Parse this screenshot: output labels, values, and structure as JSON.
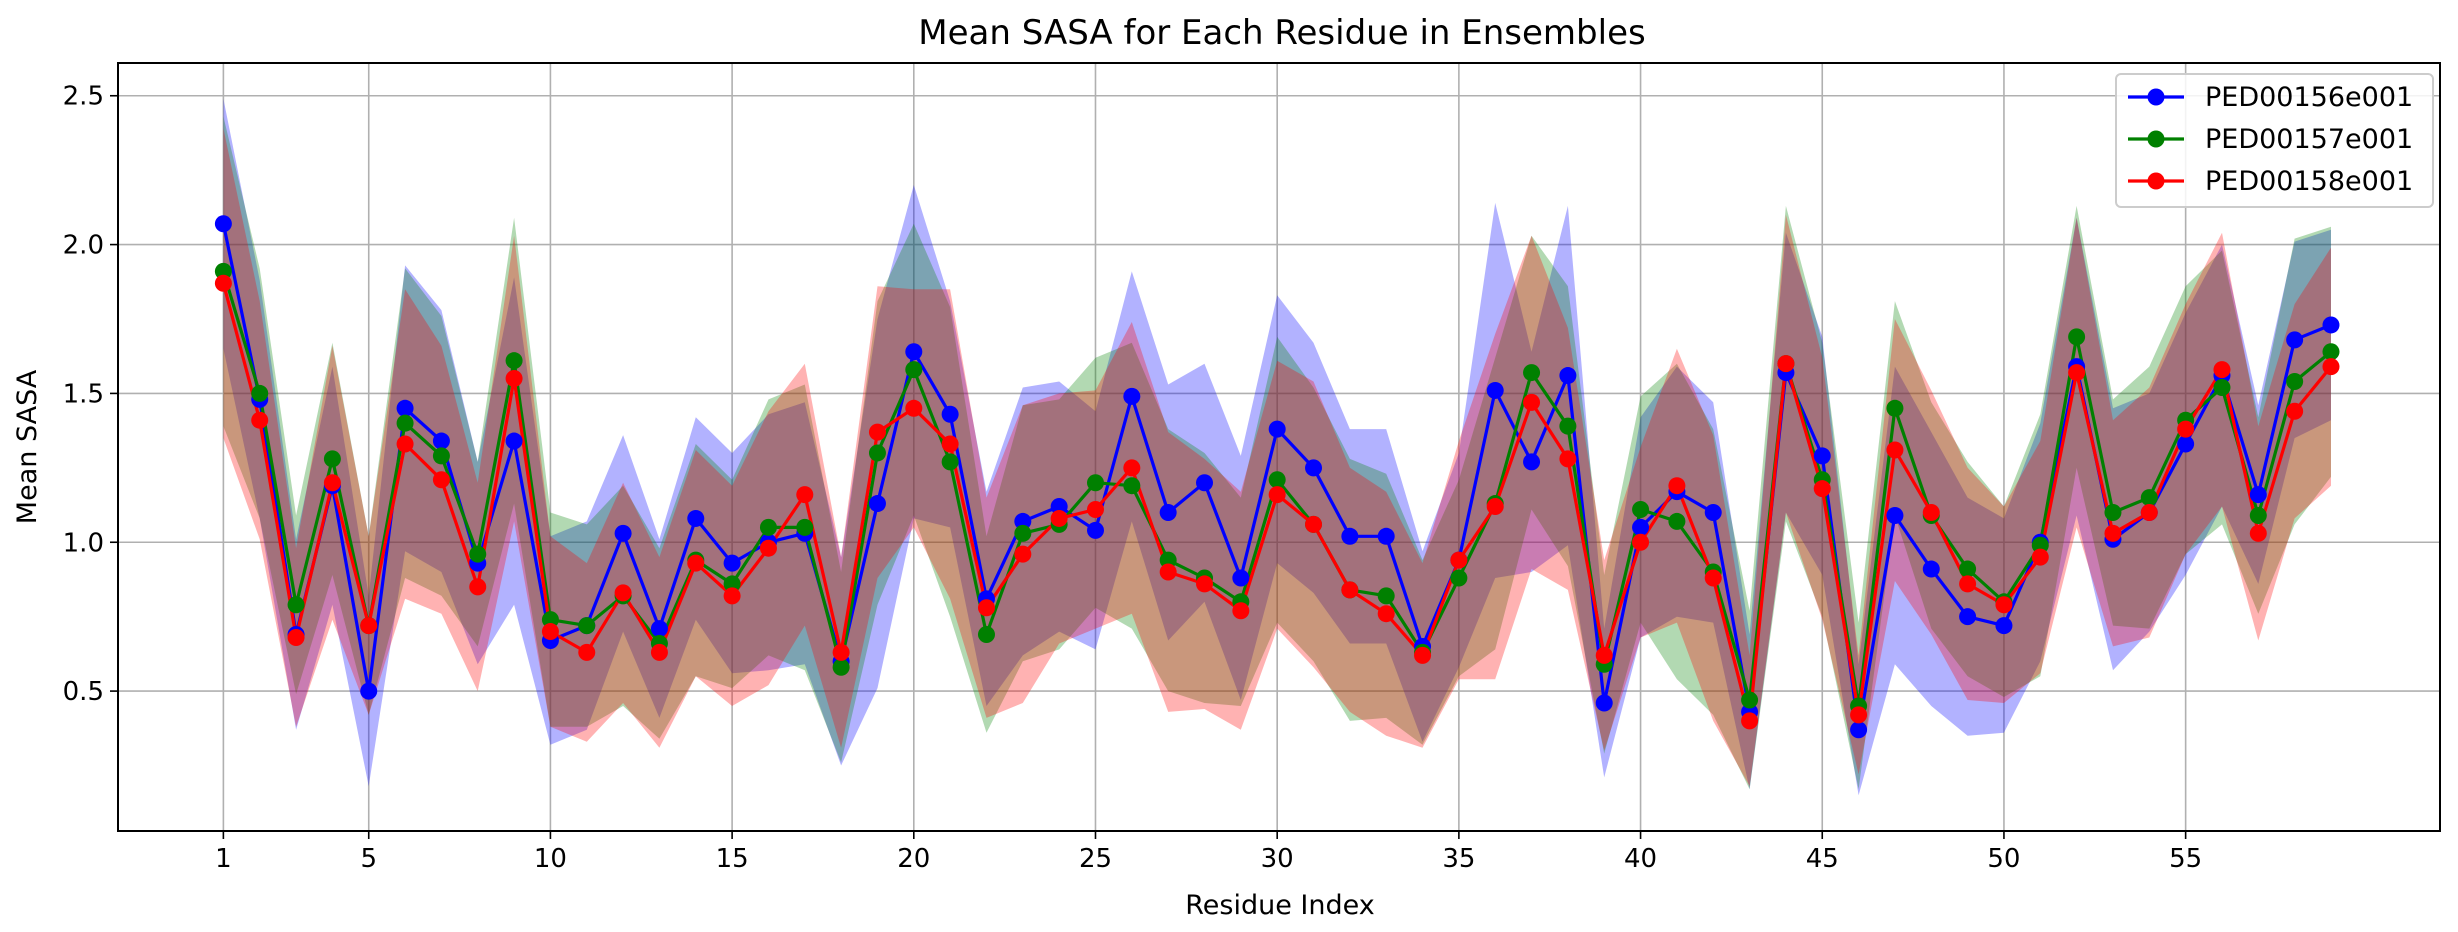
{
  "toolbar": {
    "copy_icon": "copy-icon",
    "second_icon": "toolbar-icon"
  },
  "chart_data": {
    "type": "line",
    "title": "Mean SASA for Each Residue in Ensembles",
    "xlabel": "Residue Index",
    "ylabel": "Mean SASA",
    "x": [
      1,
      2,
      3,
      4,
      5,
      6,
      7,
      8,
      9,
      10,
      11,
      12,
      13,
      14,
      15,
      16,
      17,
      18,
      19,
      20,
      21,
      22,
      23,
      24,
      25,
      26,
      27,
      28,
      29,
      30,
      31,
      32,
      33,
      34,
      35,
      36,
      37,
      38,
      39,
      40,
      41,
      42,
      43,
      44,
      45,
      46,
      47,
      48,
      49,
      50,
      51,
      52,
      53,
      54,
      55,
      56,
      57,
      58,
      59
    ],
    "xticks": [
      1,
      5,
      10,
      15,
      20,
      25,
      30,
      35,
      40,
      45,
      50,
      55
    ],
    "xtick_labels": [
      "1",
      "5",
      "10",
      "15",
      "20",
      "25",
      "30",
      "35",
      "40",
      "45",
      "50",
      "55"
    ],
    "yticks": [
      0.5,
      1.0,
      1.5,
      2.0,
      2.5
    ],
    "ytick_labels": [
      "0.5",
      "1.0",
      "1.5",
      "2.0",
      "2.5"
    ],
    "xlim": [
      -1.9,
      62.0
    ],
    "ylim": [
      0.03,
      2.61
    ],
    "grid": true,
    "legend_position": "top-right",
    "series": [
      {
        "name": "PED00156e001",
        "color": "#0000ff",
        "values": [
          2.07,
          1.48,
          0.69,
          1.19,
          0.5,
          1.45,
          1.34,
          0.93,
          1.34,
          0.67,
          0.72,
          1.03,
          0.71,
          1.08,
          0.93,
          1.0,
          1.03,
          0.6,
          1.13,
          1.64,
          1.43,
          0.81,
          1.07,
          1.12,
          1.04,
          1.49,
          1.1,
          1.2,
          0.88,
          1.38,
          1.25,
          1.02,
          1.02,
          0.65,
          0.94,
          1.51,
          1.27,
          1.56,
          0.46,
          1.05,
          1.17,
          1.1,
          0.43,
          1.57,
          1.29,
          0.37,
          1.09,
          0.91,
          0.75,
          0.72,
          1.0,
          1.59,
          1.01,
          1.1,
          1.33,
          1.56,
          1.16,
          1.68,
          1.73
        ],
        "band_width": [
          0.42,
          0.4,
          0.32,
          0.4,
          0.32,
          0.48,
          0.44,
          0.34,
          0.55,
          0.35,
          0.35,
          0.33,
          0.3,
          0.34,
          0.37,
          0.43,
          0.44,
          0.35,
          0.62,
          0.56,
          0.38,
          0.36,
          0.45,
          0.42,
          0.4,
          0.42,
          0.43,
          0.4,
          0.41,
          0.45,
          0.42,
          0.36,
          0.36,
          0.32,
          0.36,
          0.63,
          0.37,
          0.57,
          0.25,
          0.37,
          0.42,
          0.37,
          0.26,
          0.47,
          0.4,
          0.22,
          0.5,
          0.46,
          0.4,
          0.36,
          0.4,
          0.5,
          0.44,
          0.4,
          0.44,
          0.44,
          0.3,
          0.33,
          0.32
        ]
      },
      {
        "name": "PED00157e001",
        "color": "#008000",
        "values": [
          1.91,
          1.5,
          0.79,
          1.28,
          0.72,
          1.4,
          1.29,
          0.96,
          1.61,
          0.74,
          0.72,
          0.82,
          0.66,
          0.94,
          0.86,
          1.05,
          1.05,
          0.58,
          1.3,
          1.58,
          1.27,
          0.69,
          1.03,
          1.06,
          1.2,
          1.19,
          0.94,
          0.88,
          0.8,
          1.21,
          1.06,
          0.84,
          0.82,
          0.63,
          0.88,
          1.13,
          1.57,
          1.39,
          0.59,
          1.11,
          1.07,
          0.9,
          0.47,
          1.6,
          1.21,
          0.45,
          1.45,
          1.09,
          0.91,
          0.8,
          0.99,
          1.69,
          1.1,
          1.15,
          1.41,
          1.52,
          1.09,
          1.54,
          1.64
        ],
        "band_width": [
          0.52,
          0.42,
          0.3,
          0.39,
          0.3,
          0.52,
          0.47,
          0.31,
          0.48,
          0.36,
          0.34,
          0.37,
          0.32,
          0.39,
          0.35,
          0.43,
          0.48,
          0.32,
          0.51,
          0.49,
          0.52,
          0.33,
          0.43,
          0.42,
          0.42,
          0.48,
          0.44,
          0.42,
          0.35,
          0.48,
          0.46,
          0.44,
          0.41,
          0.31,
          0.33,
          0.49,
          0.46,
          0.47,
          0.3,
          0.38,
          0.53,
          0.48,
          0.3,
          0.53,
          0.46,
          0.28,
          0.36,
          0.38,
          0.36,
          0.32,
          0.44,
          0.44,
          0.38,
          0.44,
          0.45,
          0.46,
          0.33,
          0.48,
          0.42
        ]
      },
      {
        "name": "PED00158e001",
        "color": "#ff0000",
        "values": [
          1.87,
          1.41,
          0.68,
          1.2,
          0.72,
          1.33,
          1.21,
          0.85,
          1.55,
          0.7,
          0.63,
          0.83,
          0.63,
          0.93,
          0.82,
          0.98,
          1.16,
          0.63,
          1.37,
          1.45,
          1.33,
          0.78,
          0.96,
          1.08,
          1.11,
          1.25,
          0.9,
          0.86,
          0.77,
          1.16,
          1.06,
          0.84,
          0.76,
          0.62,
          0.94,
          1.12,
          1.47,
          1.28,
          0.62,
          1.0,
          1.19,
          0.88,
          0.4,
          1.6,
          1.18,
          0.42,
          1.31,
          1.1,
          0.86,
          0.79,
          0.95,
          1.57,
          1.03,
          1.1,
          1.38,
          1.58,
          1.03,
          1.44,
          1.59
        ],
        "band_width": [
          0.52,
          0.4,
          0.3,
          0.46,
          0.3,
          0.52,
          0.45,
          0.35,
          0.48,
          0.32,
          0.3,
          0.37,
          0.32,
          0.38,
          0.37,
          0.46,
          0.44,
          0.32,
          0.49,
          0.4,
          0.52,
          0.37,
          0.5,
          0.42,
          0.4,
          0.49,
          0.47,
          0.42,
          0.4,
          0.45,
          0.48,
          0.41,
          0.41,
          0.31,
          0.4,
          0.58,
          0.56,
          0.44,
          0.32,
          0.32,
          0.46,
          0.48,
          0.22,
          0.5,
          0.44,
          0.2,
          0.44,
          0.41,
          0.39,
          0.33,
          0.39,
          0.52,
          0.38,
          0.42,
          0.42,
          0.46,
          0.36,
          0.36,
          0.4
        ]
      }
    ]
  }
}
